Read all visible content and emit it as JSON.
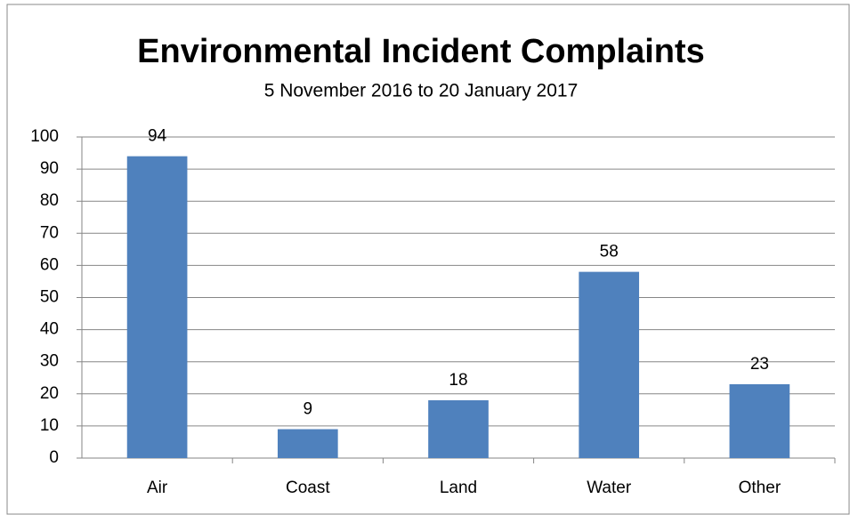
{
  "chart_data": {
    "type": "bar",
    "title": "Environmental Incident Complaints",
    "subtitle": "5 November 2016 to 20 January 2017",
    "categories": [
      "Air",
      "Coast",
      "Land",
      "Water",
      "Other"
    ],
    "values": [
      94,
      9,
      18,
      58,
      23
    ],
    "color": "#4f81bd",
    "ylim": [
      0,
      100
    ],
    "yticks": [
      0,
      10,
      20,
      30,
      40,
      50,
      60,
      70,
      80,
      90,
      100
    ],
    "grid": true
  }
}
